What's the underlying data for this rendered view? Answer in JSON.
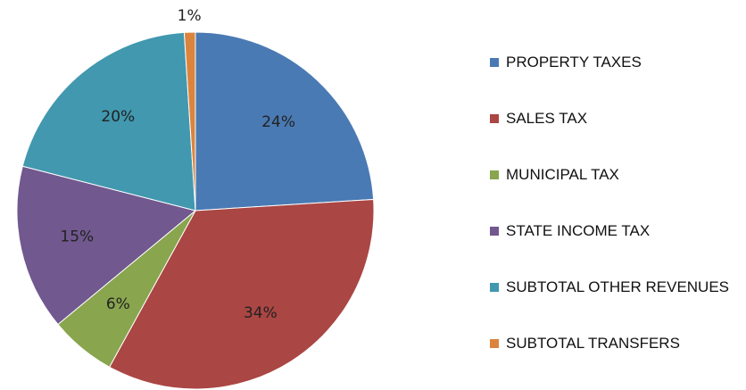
{
  "chart_data": {
    "type": "pie",
    "categories": [
      "PROPERTY TAXES",
      "SALES TAX",
      "MUNICIPAL TAX",
      "STATE INCOME TAX",
      "SUBTOTAL OTHER REVENUES",
      "SUBTOTAL TRANSFERS"
    ],
    "values": [
      24,
      34,
      6,
      15,
      20,
      1
    ],
    "value_labels": [
      "24%",
      "34%",
      "6%",
      "15%",
      "20%",
      "1%"
    ],
    "colors": [
      "#4a7ab4",
      "#aa4643",
      "#89a54e",
      "#71588f",
      "#4198af",
      "#db843d"
    ],
    "legend": "right"
  }
}
